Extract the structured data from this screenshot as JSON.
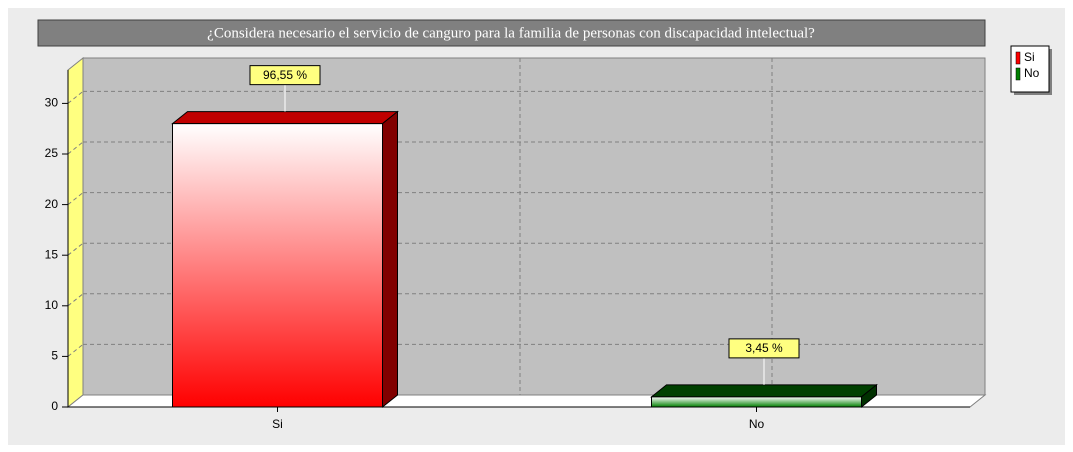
{
  "chart_data": {
    "type": "bar",
    "title": "¿Considera necesario el servicio de canguro para la familia de personas con discapacidad intelectual?",
    "categories": [
      "Si",
      "No"
    ],
    "values": [
      28,
      1
    ],
    "value_labels": [
      "96,55 %",
      "3,45 %"
    ],
    "colors": [
      "#ff0000",
      "#008000"
    ],
    "top_colors": [
      "#c00000",
      "#004000"
    ],
    "side_colors": [
      "#800000",
      "#003000"
    ],
    "ylim": [
      0,
      33.3
    ],
    "yticks": [
      0,
      5,
      10,
      15,
      20,
      25,
      30
    ],
    "grid": true,
    "legend": "right"
  }
}
